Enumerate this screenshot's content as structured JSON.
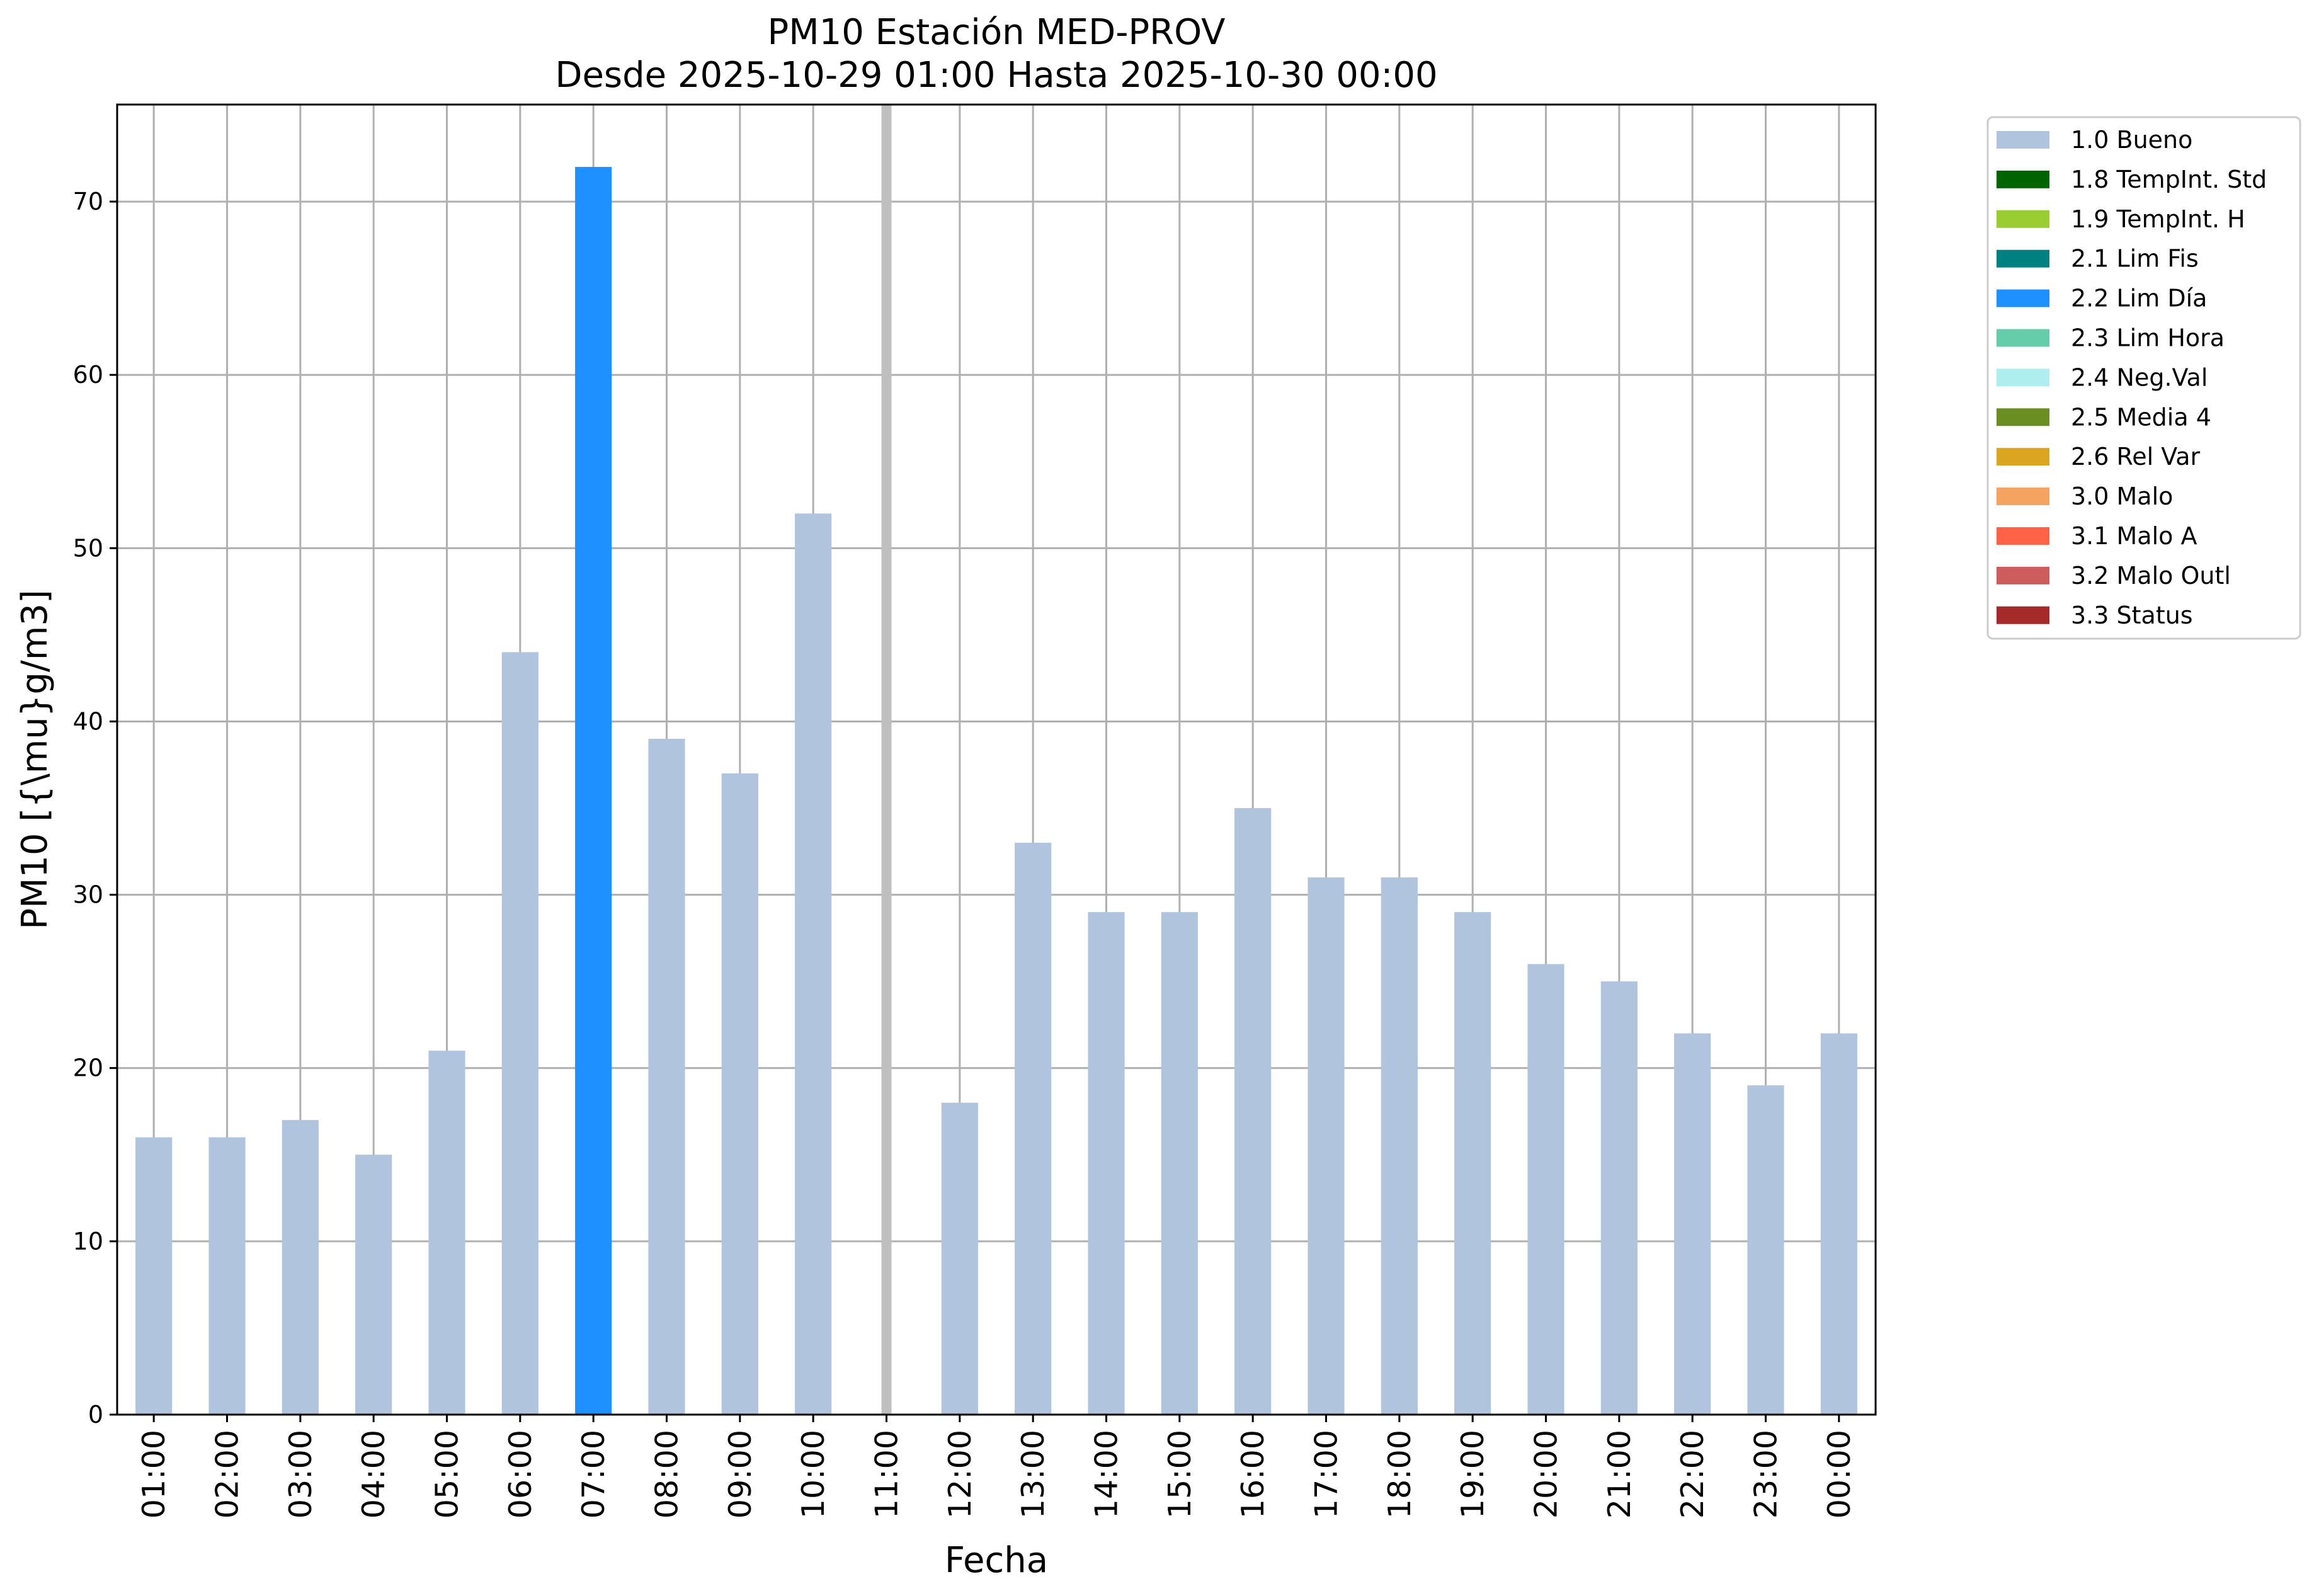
{
  "chart_data": {
    "type": "bar",
    "title": "PM10 Estación MED-PROV",
    "subtitle": "Desde 2025-10-29 01:00 Hasta 2025-10-30 00:00",
    "xlabel": "Fecha",
    "ylabel": "PM10 [{\\mu}g/m3]",
    "ylim": [
      0,
      75.6
    ],
    "yticks": [
      "0",
      "10",
      "20",
      "30",
      "40",
      "50",
      "60",
      "70"
    ],
    "grid": true,
    "legend_position": "outside-right-top",
    "categories": [
      "01:00",
      "02:00",
      "03:00",
      "04:00",
      "05:00",
      "06:00",
      "07:00",
      "08:00",
      "09:00",
      "10:00",
      "11:00",
      "12:00",
      "13:00",
      "14:00",
      "15:00",
      "16:00",
      "17:00",
      "18:00",
      "19:00",
      "20:00",
      "21:00",
      "22:00",
      "23:00",
      "00:00"
    ],
    "values": [
      16,
      16,
      17,
      15,
      21,
      44,
      72,
      39,
      37,
      52,
      null,
      18,
      33,
      29,
      29,
      35,
      31,
      31,
      29,
      26,
      25,
      22,
      19,
      22
    ],
    "flags": [
      "1.0",
      "1.0",
      "1.0",
      "1.0",
      "1.0",
      "1.0",
      "2.2",
      "1.0",
      "1.0",
      "1.0",
      null,
      "1.0",
      "1.0",
      "1.0",
      "1.0",
      "1.0",
      "1.0",
      "1.0",
      "1.0",
      "1.0",
      "1.0",
      "1.0",
      "1.0",
      "1.0"
    ],
    "missing_marker_category": "11:00",
    "missing_marker_color": "#bfbfbf",
    "legend": [
      {
        "code": "1.0",
        "label": "1.0 Bueno",
        "color": "#b0c4de"
      },
      {
        "code": "1.8",
        "label": "1.8 TempInt. Std",
        "color": "#006400"
      },
      {
        "code": "1.9",
        "label": "1.9 TempInt. H",
        "color": "#9acd32"
      },
      {
        "code": "2.1",
        "label": "2.1 Lim Fis",
        "color": "#008080"
      },
      {
        "code": "2.2",
        "label": "2.2 Lim Día",
        "color": "#1e90ff"
      },
      {
        "code": "2.3",
        "label": "2.3 Lim Hora",
        "color": "#66cdaa"
      },
      {
        "code": "2.4",
        "label": "2.4 Neg.Val",
        "color": "#afeeee"
      },
      {
        "code": "2.5",
        "label": "2.5 Media 4",
        "color": "#6b8e23"
      },
      {
        "code": "2.6",
        "label": "2.6 Rel Var",
        "color": "#daa520"
      },
      {
        "code": "3.0",
        "label": "3.0 Malo",
        "color": "#f4a460"
      },
      {
        "code": "3.1",
        "label": "3.1 Malo A",
        "color": "#ff6347"
      },
      {
        "code": "3.2",
        "label": "3.2 Malo Outl",
        "color": "#cd5c5c"
      },
      {
        "code": "3.3",
        "label": "3.3 Status",
        "color": "#a52a2a"
      }
    ]
  }
}
